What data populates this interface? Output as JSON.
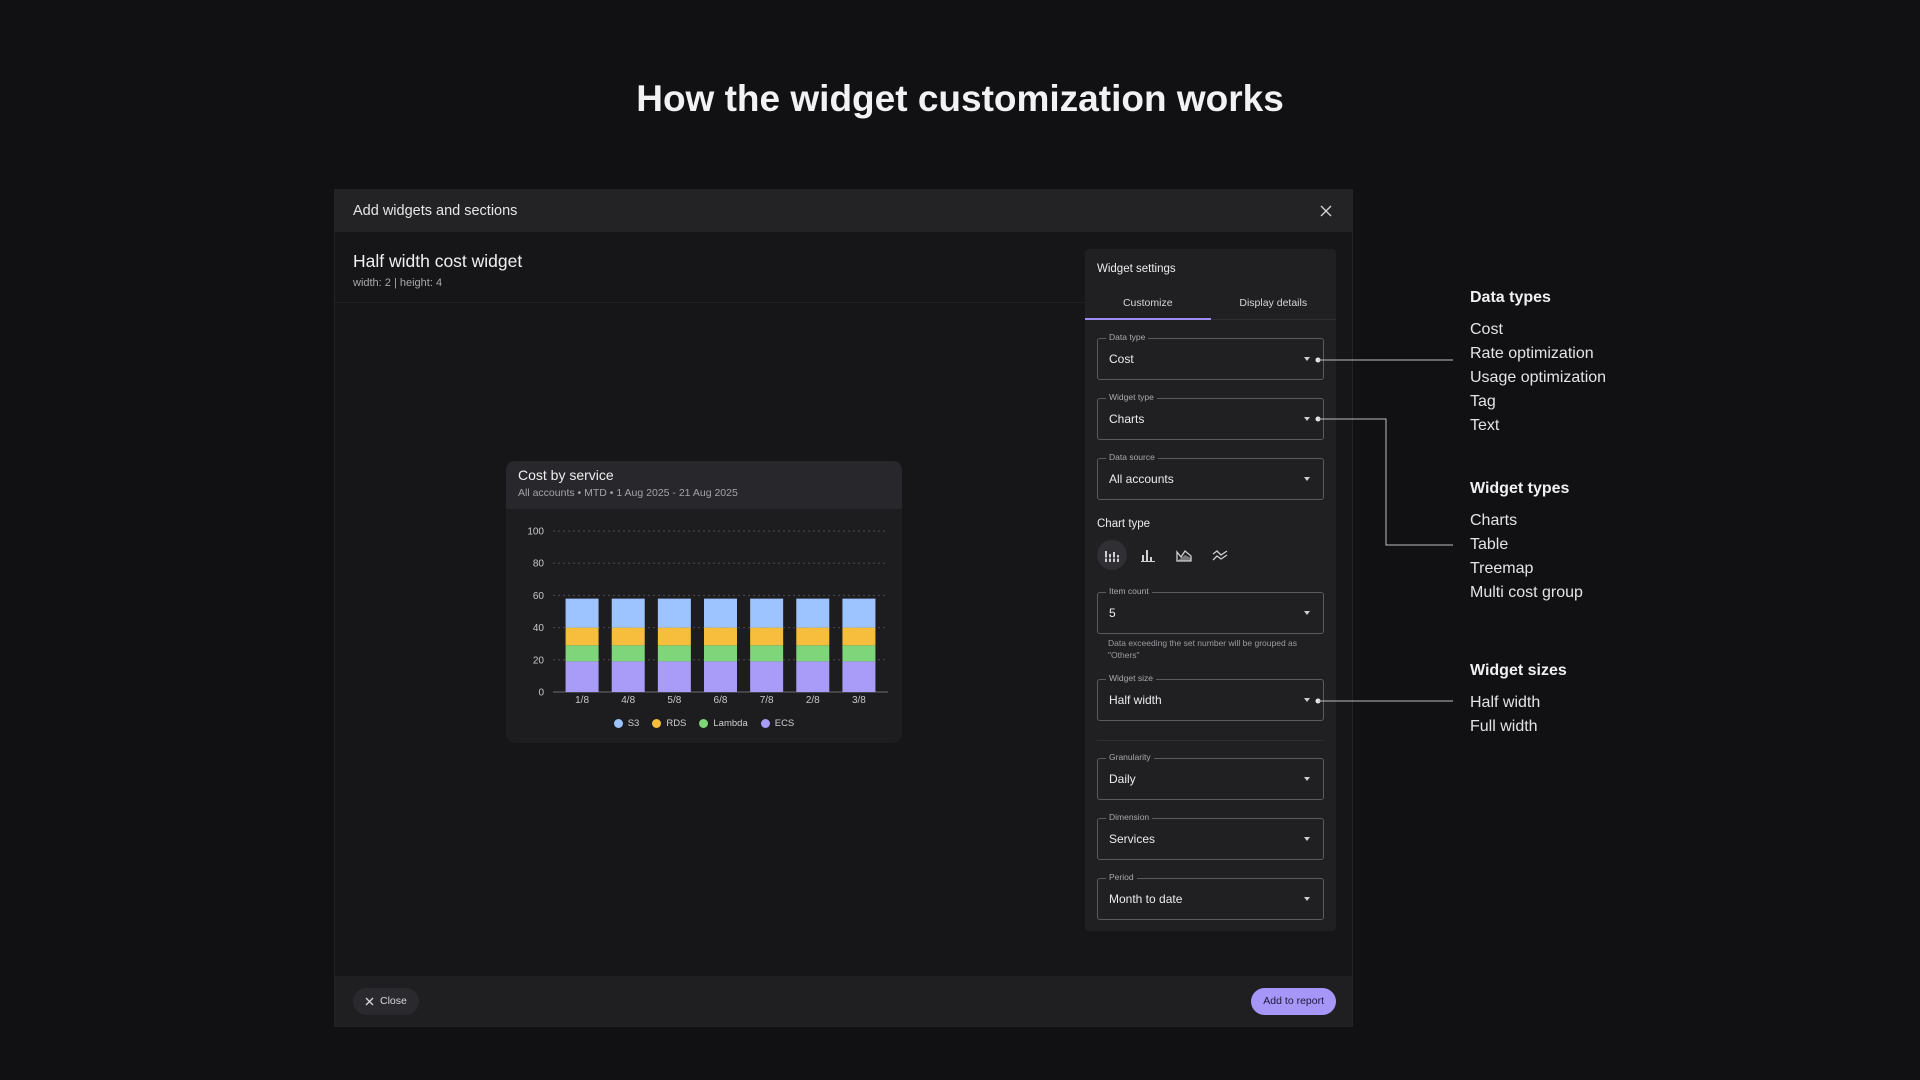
{
  "page": {
    "title": "How the widget customization works"
  },
  "modal": {
    "title": "Add widgets and sections",
    "widget_name": "Half width cost widget",
    "widget_dims": "width: 2 | height: 4",
    "footer": {
      "close_label": "Close",
      "add_label": "Add to report"
    }
  },
  "chart_card": {
    "title": "Cost by service",
    "subtitle": "All accounts • MTD • 1 Aug 2025 - 21 Aug 2025"
  },
  "chart_data": {
    "type": "bar",
    "stacked": true,
    "categories": [
      "1/8",
      "4/8",
      "5/8",
      "6/8",
      "7/8",
      "2/8",
      "3/8"
    ],
    "series": [
      {
        "name": "ECS",
        "color": "#a99cf9",
        "values": [
          19,
          19,
          19,
          19,
          19,
          19,
          19
        ]
      },
      {
        "name": "Lambda",
        "color": "#7fd67a",
        "values": [
          10,
          10,
          10,
          10,
          10,
          10,
          10
        ]
      },
      {
        "name": "RDS",
        "color": "#f7bd3d",
        "values": [
          11,
          11,
          11,
          11,
          11,
          11,
          11
        ]
      },
      {
        "name": "S3",
        "color": "#9ec4ff",
        "values": [
          18,
          18,
          18,
          18,
          18,
          18,
          18
        ]
      }
    ],
    "legend_order": [
      "S3",
      "RDS",
      "Lambda",
      "ECS"
    ],
    "yticks": [
      0,
      20,
      40,
      60,
      80,
      100
    ],
    "ylim": [
      0,
      100
    ],
    "grid": true,
    "legend_position": "bottom"
  },
  "settings": {
    "title": "Widget settings",
    "tabs": [
      {
        "label": "Customize",
        "active": true
      },
      {
        "label": "Display details",
        "active": false
      }
    ],
    "fields": {
      "data_type": {
        "label": "Data type",
        "value": "Cost"
      },
      "widget_type": {
        "label": "Widget type",
        "value": "Charts"
      },
      "data_source": {
        "label": "Data source",
        "value": "All accounts"
      },
      "item_count": {
        "label": "Item count",
        "value": "5"
      },
      "widget_size": {
        "label": "Widget size",
        "value": "Half width"
      },
      "granularity": {
        "label": "Granularity",
        "value": "Daily"
      },
      "dimension": {
        "label": "Dimension",
        "value": "Services"
      },
      "period": {
        "label": "Period",
        "value": "Month to date"
      }
    },
    "chart_type_label": "Chart type",
    "chart_type_icons": [
      "stacked-bar-icon",
      "grouped-bar-icon",
      "area-chart-icon",
      "line-chart-icon"
    ],
    "item_count_helper": "Data exceeding the set number will be grouped as \"Others\""
  },
  "annotations": {
    "data_types": {
      "title": "Data types",
      "items": [
        "Cost",
        "Rate optimization",
        "Usage optimization",
        "Tag",
        "Text"
      ]
    },
    "widget_types": {
      "title": "Widget types",
      "items": [
        "Charts",
        "Table",
        "Treemap",
        "Multi cost group"
      ]
    },
    "widget_sizes": {
      "title": "Widget sizes",
      "items": [
        "Half width",
        "Full width"
      ]
    }
  },
  "colors": {
    "accent": "#a696f8",
    "background": "#111113"
  }
}
